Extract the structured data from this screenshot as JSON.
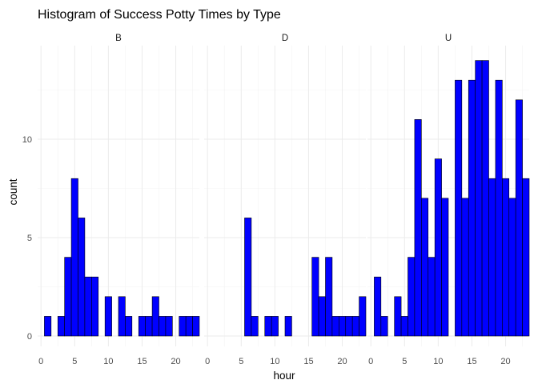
{
  "chart_data": {
    "type": "bar",
    "title": "Histogram of Success Potty Times by Type",
    "xlabel": "hour",
    "ylabel": "count",
    "xlim": [
      -0.5,
      23.5
    ],
    "ylim": [
      0,
      14
    ],
    "x_ticks": [
      0,
      5,
      10,
      15,
      20
    ],
    "y_ticks": [
      0,
      5,
      10
    ],
    "bar_fill": "#0000ff",
    "bar_outline": "#000000",
    "grid": true,
    "hours": [
      0,
      1,
      2,
      3,
      4,
      5,
      6,
      7,
      8,
      9,
      10,
      11,
      12,
      13,
      14,
      15,
      16,
      17,
      18,
      19,
      20,
      21,
      22,
      23
    ],
    "facets": [
      {
        "name": "B",
        "values": [
          0,
          1,
          0,
          1,
          4,
          8,
          6,
          3,
          3,
          0,
          2,
          0,
          2,
          1,
          0,
          1,
          1,
          2,
          1,
          1,
          0,
          1,
          1,
          1
        ]
      },
      {
        "name": "D",
        "values": [
          0,
          0,
          0,
          0,
          0,
          0,
          6,
          1,
          0,
          1,
          1,
          0,
          1,
          0,
          0,
          0,
          4,
          2,
          4,
          1,
          1,
          1,
          1,
          2
        ]
      },
      {
        "name": "U",
        "values": [
          0,
          3,
          1,
          0,
          2,
          1,
          4,
          11,
          7,
          4,
          9,
          7,
          0,
          13,
          7,
          13,
          14,
          14,
          8,
          13,
          8,
          7,
          12,
          8
        ]
      }
    ]
  }
}
